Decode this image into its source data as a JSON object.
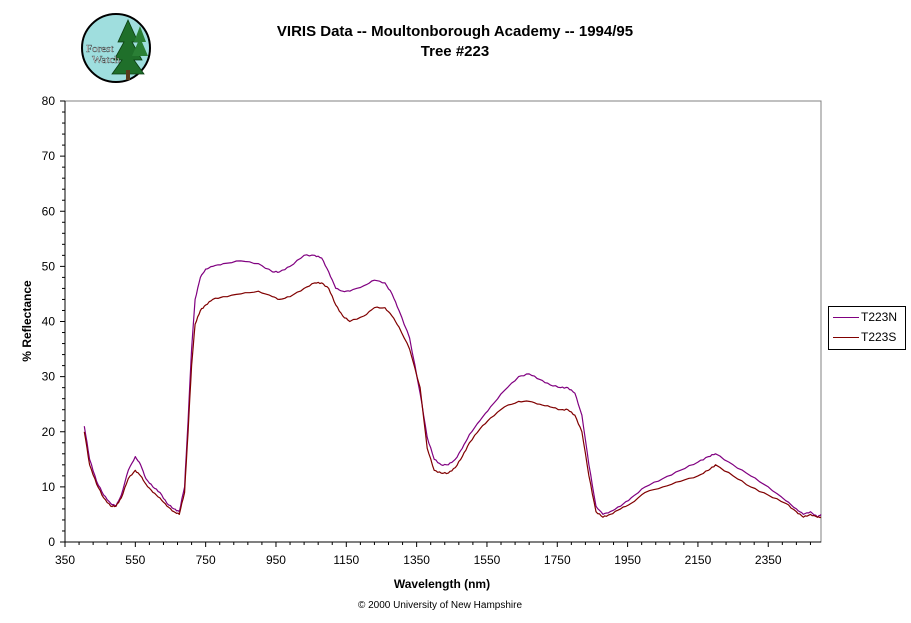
{
  "logo": {
    "text_line1": "Forest",
    "text_line2": "Watch"
  },
  "chart_data": {
    "type": "line",
    "title": "VIRIS Data -- Moultonborough Academy -- 1994/95",
    "subtitle": "Tree #223",
    "xlabel": "Wavelength (nm)",
    "ylabel": "% Reflectance",
    "xlim": [
      350,
      2500
    ],
    "ylim": [
      0,
      80
    ],
    "xticks": [
      350,
      550,
      750,
      950,
      1150,
      1350,
      1550,
      1750,
      1950,
      2150,
      2350
    ],
    "yticks": [
      0,
      10,
      20,
      30,
      40,
      50,
      60,
      70,
      80
    ],
    "grid": false,
    "legend": "right",
    "series": [
      {
        "name": "T223N",
        "color": "#800080",
        "x": [
          405,
          420,
          440,
          460,
          480,
          495,
          510,
          530,
          550,
          565,
          580,
          600,
          620,
          640,
          660,
          675,
          690,
          700,
          710,
          720,
          735,
          750,
          770,
          800,
          850,
          900,
          940,
          960,
          990,
          1030,
          1060,
          1080,
          1100,
          1120,
          1140,
          1160,
          1200,
          1230,
          1260,
          1280,
          1300,
          1330,
          1360,
          1380,
          1400,
          1420,
          1440,
          1460,
          1480,
          1500,
          1530,
          1560,
          1600,
          1640,
          1670,
          1700,
          1730,
          1760,
          1780,
          1800,
          1820,
          1840,
          1860,
          1880,
          1900,
          1930,
          1960,
          2000,
          2050,
          2100,
          2150,
          2180,
          2200,
          2250,
          2300,
          2350,
          2400,
          2430,
          2450,
          2470,
          2490,
          2500
        ],
        "y": [
          21,
          15,
          11,
          8.5,
          7,
          6.5,
          8.5,
          13,
          15.5,
          14,
          11.5,
          10,
          9,
          7,
          6,
          5.5,
          10,
          22,
          35,
          44,
          48,
          49.5,
          50,
          50.5,
          51,
          50.5,
          49,
          49,
          50,
          52,
          52,
          51.5,
          49,
          46,
          45.5,
          45.5,
          46.5,
          47.5,
          47,
          45,
          42,
          37,
          27,
          19,
          15,
          14,
          14,
          15,
          17,
          19.5,
          22,
          24.5,
          27.5,
          30,
          30.5,
          29.5,
          28.5,
          28,
          28,
          27,
          23,
          14,
          6.5,
          5,
          5.5,
          6.5,
          8,
          10,
          11.5,
          13,
          14.5,
          15.5,
          16,
          14,
          12,
          10,
          7.5,
          6,
          5,
          5.5,
          4.5,
          5
        ]
      },
      {
        "name": "T223S",
        "color": "#800000",
        "x": [
          405,
          420,
          440,
          460,
          480,
          495,
          510,
          530,
          550,
          565,
          580,
          600,
          620,
          640,
          660,
          675,
          690,
          700,
          710,
          720,
          735,
          750,
          770,
          800,
          850,
          900,
          940,
          960,
          990,
          1030,
          1060,
          1080,
          1100,
          1120,
          1140,
          1160,
          1200,
          1230,
          1260,
          1280,
          1300,
          1330,
          1360,
          1380,
          1400,
          1420,
          1440,
          1460,
          1480,
          1500,
          1530,
          1560,
          1600,
          1640,
          1670,
          1700,
          1730,
          1760,
          1780,
          1800,
          1820,
          1840,
          1860,
          1880,
          1900,
          1930,
          1960,
          2000,
          2050,
          2100,
          2150,
          2180,
          2200,
          2250,
          2300,
          2350,
          2400,
          2430,
          2450,
          2470,
          2490,
          2500
        ],
        "y": [
          20,
          14,
          10.5,
          8,
          6.5,
          6.5,
          8,
          11.5,
          13,
          12,
          10.5,
          9,
          8,
          6.5,
          5.5,
          5,
          9,
          20,
          32,
          39.5,
          42,
          43,
          44,
          44.5,
          45,
          45.5,
          44.5,
          44,
          44.5,
          46,
          47,
          47,
          46,
          43,
          41,
          40,
          41,
          42.5,
          42.5,
          41,
          39,
          35,
          28,
          17,
          13,
          12.5,
          12.5,
          13.5,
          15.5,
          18,
          20.5,
          22.5,
          24.5,
          25.5,
          25.5,
          25,
          24.5,
          24,
          24,
          23,
          20,
          12,
          5.5,
          4.5,
          5,
          6,
          7,
          9,
          10,
          11,
          12,
          13,
          14,
          12,
          10,
          8.5,
          7,
          5.5,
          4.5,
          5,
          4.5,
          4.5
        ]
      }
    ]
  },
  "footer": {
    "copyright": "© 2000 University of New Hampshire"
  }
}
